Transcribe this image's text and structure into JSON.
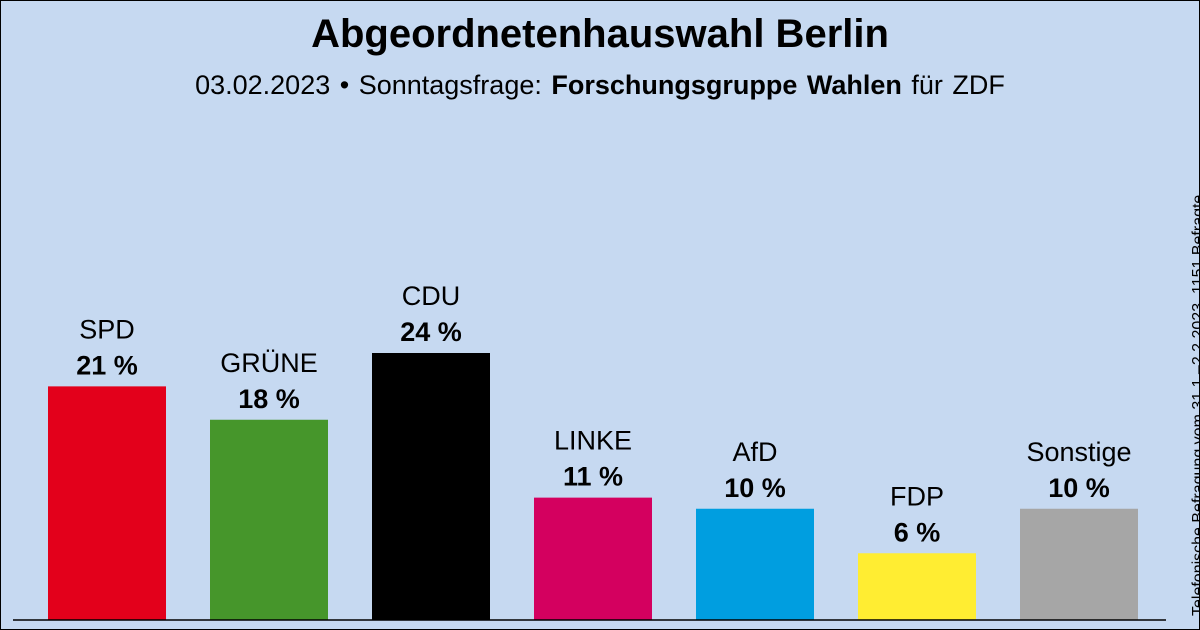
{
  "title": "Abgeordnetenhauswahl Berlin",
  "subtitle": {
    "date": "03.02.2023",
    "separator": "•",
    "type": "Sonntagsfrage:",
    "pollster": "Forschungsgruppe Wahlen",
    "client": "für ZDF"
  },
  "side_note": "Telefonische Befragung vom 31.1.–2.2.2023, 1151 Befragte",
  "chart_data": {
    "type": "bar",
    "categories": [
      "SPD",
      "GRÜNE",
      "CDU",
      "LINKE",
      "AfD",
      "FDP",
      "Sonstige"
    ],
    "values": [
      21,
      18,
      24,
      11,
      10,
      6,
      10
    ],
    "value_labels": [
      "21 %",
      "18 %",
      "24 %",
      "11 %",
      "10 %",
      "6 %",
      "10 %"
    ],
    "colors": [
      "#e3001b",
      "#46962b",
      "#000000",
      "#d4005f",
      "#009ee0",
      "#ffed32",
      "#a6a6a6"
    ],
    "ylim": [
      0,
      24
    ],
    "grid": false,
    "legend": "none"
  }
}
